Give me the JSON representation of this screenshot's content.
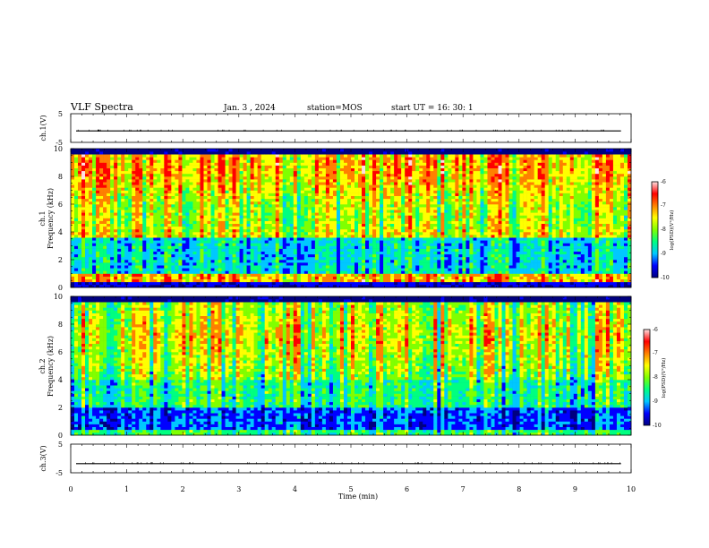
{
  "header": {
    "title": "VLF Spectra",
    "date": "Jan. 3 , 2024",
    "station": "station=MOS",
    "start": "start UT = 16: 30: 1"
  },
  "chart_data": [
    {
      "type": "line",
      "ylabel": "ch.1(V)",
      "ylim": [
        -5,
        5
      ],
      "yticks": [
        "5",
        "-5"
      ],
      "xlim": [
        0,
        10
      ],
      "signal_level": -1
    },
    {
      "type": "heatmap",
      "ylabel_channel": "ch.1",
      "ylabel": "Frequency (kHz)",
      "ylim": [
        0,
        10
      ],
      "yticks": [
        "0",
        "2",
        "4",
        "6",
        "8",
        "10"
      ],
      "xlim": [
        0,
        10
      ],
      "colorbar": {
        "ticks": [
          "-6",
          "-7",
          "-8",
          "-9",
          "-10"
        ],
        "label": "log(PSD)(V²/Hz)",
        "range": [
          -10,
          -6
        ]
      }
    },
    {
      "type": "heatmap",
      "ylabel_channel": "ch.2",
      "ylabel": "Frequency (kHz)",
      "ylim": [
        0,
        10
      ],
      "yticks": [
        "0",
        "2",
        "4",
        "6",
        "8",
        "10"
      ],
      "xlim": [
        0,
        10
      ],
      "colorbar": {
        "ticks": [
          "-6",
          "-7",
          "-8",
          "-9",
          "-10"
        ],
        "label": "log(PSD)(V²/Hz)",
        "range": [
          -10,
          -6
        ]
      }
    },
    {
      "type": "line",
      "ylabel": "ch.3(V)",
      "ylim": [
        -5,
        5
      ],
      "yticks": [
        "5",
        "-5"
      ],
      "xlim": [
        0,
        10
      ],
      "signal_level": -1.8
    }
  ],
  "xaxis": {
    "label": "Time (min)",
    "ticks": [
      "0",
      "1",
      "2",
      "3",
      "4",
      "5",
      "6",
      "7",
      "8",
      "9",
      "10"
    ]
  },
  "colors": {
    "colormap": [
      "#000080",
      "#0000ff",
      "#00c8ff",
      "#00ff80",
      "#80ff00",
      "#ffff00",
      "#ff8000",
      "#ff0000",
      "#ffe0e0"
    ]
  }
}
